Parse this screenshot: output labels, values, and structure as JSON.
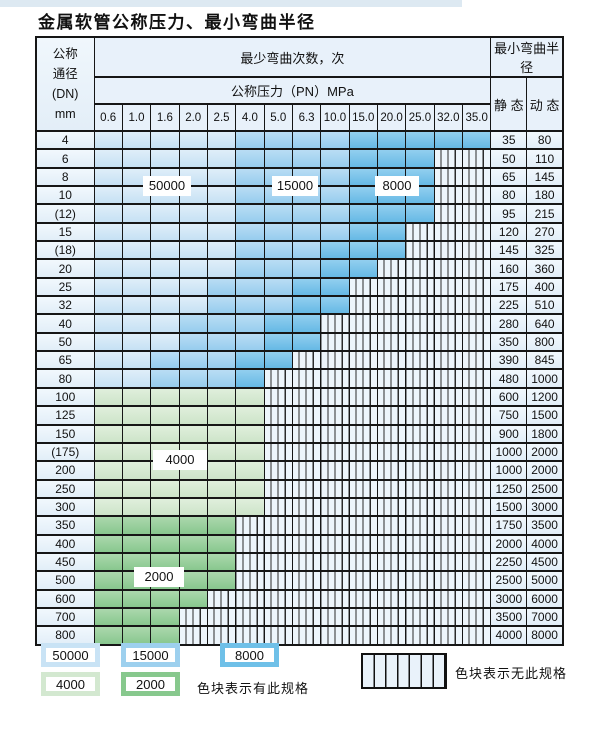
{
  "title": "金属软管公称压力、最小弯曲半径",
  "table": {
    "header": {
      "dn_label_lines": [
        "公称",
        "通径",
        "(DN)",
        "mm"
      ],
      "bend_cycles_label": "最少弯曲次数，次",
      "pressure_label": "公称压力（PN）MPa",
      "radius_label": "最小弯曲半径",
      "static_label": "静 态",
      "dynamic_label": "动 态",
      "pressure_columns": [
        "0.6",
        "1.0",
        "1.6",
        "2.0",
        "2.5",
        "4.0",
        "5.0",
        "6.3",
        "10.0",
        "15.0",
        "20.0",
        "25.0",
        "32.0",
        "35.0"
      ]
    },
    "cell_color_key": {
      "L": "blue-light-50000",
      "M": "blue-medium-15000",
      "D": "blue-dark-8000",
      "G": "green-light-4000",
      "E": "green-medium-2000",
      "S": "striped-not-available"
    },
    "rows": [
      {
        "dn": "4",
        "cells": "LLLLLMMMMDDDDD",
        "static": "35",
        "dynamic": "80"
      },
      {
        "dn": "6",
        "cells": "LLLLLMMMMDDDSS",
        "static": "50",
        "dynamic": "110"
      },
      {
        "dn": "8",
        "cells": "LLLLLMMMMDDDSS",
        "static": "65",
        "dynamic": "145"
      },
      {
        "dn": "10",
        "cells": "LLLLLMMMMDDDSS",
        "static": "80",
        "dynamic": "180"
      },
      {
        "dn": "(12)",
        "cells": "LLLLLMMMMDDDSS",
        "static": "95",
        "dynamic": "215"
      },
      {
        "dn": "15",
        "cells": "LLLLLMMMMDDSSS",
        "static": "120",
        "dynamic": "270"
      },
      {
        "dn": "(18)",
        "cells": "LLLLLMMMDDDSSS",
        "static": "145",
        "dynamic": "325"
      },
      {
        "dn": "20",
        "cells": "LLLLLMMMDDSSSS",
        "static": "160",
        "dynamic": "360"
      },
      {
        "dn": "25",
        "cells": "LLLLMMMDDSSSSS",
        "static": "175",
        "dynamic": "400"
      },
      {
        "dn": "32",
        "cells": "LLLLMMMDDSSSSS",
        "static": "225",
        "dynamic": "510"
      },
      {
        "dn": "40",
        "cells": "LLLMMMDDSSSSSS",
        "static": "280",
        "dynamic": "640"
      },
      {
        "dn": "50",
        "cells": "LLLMMMDDSSSSSS",
        "static": "350",
        "dynamic": "800"
      },
      {
        "dn": "65",
        "cells": "LLMMMDDSSSSSSS",
        "static": "390",
        "dynamic": "845"
      },
      {
        "dn": "80",
        "cells": "LLMMMDSSSSSSSS",
        "static": "480",
        "dynamic": "1000"
      },
      {
        "dn": "100",
        "cells": "GGGGGGSSSSSSSS",
        "static": "600",
        "dynamic": "1200"
      },
      {
        "dn": "125",
        "cells": "GGGGGGSSSSSSSS",
        "static": "750",
        "dynamic": "1500"
      },
      {
        "dn": "150",
        "cells": "GGGGGGSSSSSSSS",
        "static": "900",
        "dynamic": "1800"
      },
      {
        "dn": "(175)",
        "cells": "GGGGGGSSSSSSSS",
        "static": "1000",
        "dynamic": "2000"
      },
      {
        "dn": "200",
        "cells": "GGGGGGSSSSSSSS",
        "static": "1000",
        "dynamic": "2000"
      },
      {
        "dn": "250",
        "cells": "GGGGGGSSSSSSSS",
        "static": "1250",
        "dynamic": "2500"
      },
      {
        "dn": "300",
        "cells": "GGGGGGSSSSSSSS",
        "static": "1500",
        "dynamic": "3000"
      },
      {
        "dn": "350",
        "cells": "EEEEESSSSSSSSS",
        "static": "1750",
        "dynamic": "3500"
      },
      {
        "dn": "400",
        "cells": "EEEEESSSSSSSSS",
        "static": "2000",
        "dynamic": "4000"
      },
      {
        "dn": "450",
        "cells": "EEEEESSSSSSSSS",
        "static": "2250",
        "dynamic": "4500"
      },
      {
        "dn": "500",
        "cells": "EEEEESSSSSSSSS",
        "static": "2500",
        "dynamic": "5000"
      },
      {
        "dn": "600",
        "cells": "EEEESSSSSSSSSS",
        "static": "3000",
        "dynamic": "6000"
      },
      {
        "dn": "700",
        "cells": "EEESSSSSSSSSSS",
        "static": "3500",
        "dynamic": "7000"
      },
      {
        "dn": "800",
        "cells": "EEESSSSSSSSSSS",
        "static": "4000",
        "dynamic": "8000"
      }
    ]
  },
  "region_labels": {
    "blue_50000": "50000",
    "blue_15000": "15000",
    "blue_8000": "8000",
    "green_4000": "4000",
    "green_2000": "2000"
  },
  "legend": {
    "swatches": [
      {
        "label": "50000",
        "type": "blue-light"
      },
      {
        "label": "15000",
        "type": "blue-medium"
      },
      {
        "label": "8000",
        "type": "blue-dark"
      },
      {
        "label": "4000",
        "type": "green-light"
      },
      {
        "label": "2000",
        "type": "green-medium"
      }
    ],
    "available_note": "色块表示有此规格",
    "unavailable_note": "色块表示无此规格"
  },
  "colors": {
    "blue_light": "#cde5f6",
    "blue_medium": "#a0d2ef",
    "blue_dark": "#6fc0e8",
    "green_light": "#d4e9d0",
    "green_medium": "#8cc991",
    "striped_fill": "#edf5fb",
    "header_bg": "#e8f1fa",
    "border": "#161616"
  }
}
